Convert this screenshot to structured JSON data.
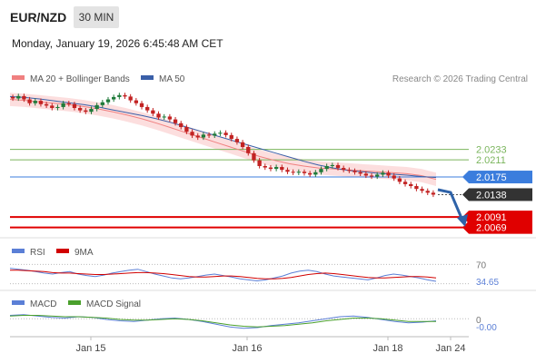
{
  "header": {
    "symbol": "EUR/NZD",
    "timeframe": "30 MIN",
    "datetime": "Monday, January 19, 2026 6:45:48 AM CET"
  },
  "legend": {
    "ma20": "MA 20 + Bollinger Bands",
    "ma50": "MA 50",
    "credit": "Research © 2026 Trading Central",
    "rsi": "RSI",
    "rsi_ma": "9MA",
    "macd": "MACD",
    "macd_signal": "MACD Signal"
  },
  "colors": {
    "up_candle": "#1f7a3a",
    "down_candle": "#c22222",
    "ma20": "#f08080",
    "ma50": "#3a5fa8",
    "bollinger_fill": "#fbd3d3",
    "green_level": "#7ab55c",
    "blue_level": "#3b7ddd",
    "red_level": "#e00000",
    "dark_level": "#333333",
    "rsi_line": "#5b7fd6",
    "rsi_ma_line": "#d10000",
    "macd_line": "#5b7fd6",
    "macd_signal_line": "#4aa02c"
  },
  "chart_data": [
    {
      "type": "candlestick",
      "title": "",
      "x_ticks": [
        "Jan 15",
        "Jan 16",
        "Jan 18",
        "Jan 24"
      ],
      "ylim": [
        2.0055,
        2.036
      ],
      "close_series": [
        2.034,
        2.0345,
        2.0338,
        2.033,
        2.0335,
        2.0328,
        2.0325,
        2.032,
        2.0322,
        2.033,
        2.0328,
        2.032,
        2.0315,
        2.0312,
        2.0318,
        2.0326,
        2.0332,
        2.0338,
        2.0343,
        2.0347,
        2.0344,
        2.0336,
        2.033,
        2.0322,
        2.0315,
        2.0308,
        2.03,
        2.0302,
        2.0296,
        2.0288,
        2.028,
        2.027,
        2.0262,
        2.0258,
        2.0264,
        2.0262,
        2.0266,
        2.0268,
        2.0263,
        2.0255,
        2.0248,
        2.0238,
        2.0225,
        2.021,
        2.0198,
        2.0195,
        2.0192,
        2.0196,
        2.019,
        2.0186,
        2.0184,
        2.0186,
        2.0183,
        2.018,
        2.0185,
        2.0192,
        2.0198,
        2.02,
        2.0194,
        2.019,
        2.0188,
        2.0185,
        2.0182,
        2.0178,
        2.0176,
        2.018,
        2.0184,
        2.0178,
        2.0172,
        2.0165,
        2.016,
        2.0156,
        2.015,
        2.0146,
        2.0142,
        2.0138
      ],
      "series": [
        {
          "name": "MA 20 + Bollinger Bands",
          "values": [
            2.0338,
            2.0336,
            2.0333,
            2.033,
            2.0327,
            2.0323,
            2.0318,
            2.0312,
            2.0305,
            2.0297,
            2.0288,
            2.0278,
            2.0268,
            2.0258,
            2.0248,
            2.0238,
            2.0228,
            2.0218,
            2.021,
            2.0203,
            2.0198,
            2.0194,
            2.0192,
            2.019,
            2.0188,
            2.0186,
            2.0184,
            2.0182,
            2.0178,
            2.017
          ]
        },
        {
          "name": "MA 50",
          "values": [
            2.0344,
            2.0342,
            2.0339,
            2.0335,
            2.0331,
            2.0327,
            2.0322,
            2.0316,
            2.031,
            2.0304,
            2.0297,
            2.0289,
            2.028,
            2.0271,
            2.0262,
            2.0253,
            2.0244,
            2.0235,
            2.0226,
            2.0217,
            2.0208,
            2.02,
            2.0194,
            2.0189,
            2.0186,
            2.0183,
            2.0181,
            2.0179,
            2.0176,
            2.0174
          ]
        }
      ],
      "levels": [
        {
          "label": "2.0233",
          "value": 2.0233,
          "style": "green"
        },
        {
          "label": "2.0211",
          "value": 2.0211,
          "style": "green"
        },
        {
          "label": "2.0175",
          "value": 2.0175,
          "style": "blue"
        },
        {
          "label": "2.0138",
          "value": 2.0138,
          "style": "dark"
        },
        {
          "label": "2.0091",
          "value": 2.0091,
          "style": "red"
        },
        {
          "label": "2.0069",
          "value": 2.0069,
          "style": "red"
        }
      ]
    },
    {
      "type": "line",
      "title": "RSI",
      "ylim": [
        20,
        80
      ],
      "y_ticks": [
        "70",
        "34.65"
      ],
      "series": [
        {
          "name": "RSI",
          "values": [
            62,
            60,
            58,
            55,
            52,
            50,
            53,
            55,
            50,
            47,
            45,
            48,
            52,
            55,
            58,
            60,
            55,
            50,
            46,
            42,
            40,
            42,
            45,
            48,
            50,
            47,
            44,
            40,
            38,
            36,
            38,
            42,
            46,
            52,
            56,
            58,
            55,
            50,
            46,
            44,
            42,
            40,
            38,
            42,
            47,
            50,
            48,
            45,
            42,
            38,
            35
          ]
        },
        {
          "name": "9MA",
          "values": [
            58,
            58,
            57,
            56,
            55,
            53,
            52,
            52,
            51,
            50,
            49,
            49,
            50,
            51,
            52,
            53,
            53,
            52,
            51,
            49,
            47,
            45,
            44,
            44,
            45,
            46,
            46,
            45,
            43,
            41,
            40,
            40,
            41,
            43,
            46,
            49,
            51,
            52,
            51,
            49,
            47,
            45,
            43,
            42,
            42,
            43,
            44,
            45,
            45,
            44,
            42
          ]
        }
      ]
    },
    {
      "type": "line",
      "title": "MACD",
      "ylim": [
        -0.0025,
        0.0015
      ],
      "y_ticks": [
        "0",
        "-0.00"
      ],
      "series": [
        {
          "name": "MACD",
          "values": [
            0.0005,
            0.0006,
            0.0004,
            0.0002,
            0.0001,
            0.0003,
            0.0002,
            -0.0001,
            -0.0003,
            -0.0004,
            -0.0002,
            0.0,
            0.0001,
            -0.0001,
            -0.0004,
            -0.0008,
            -0.0012,
            -0.0014,
            -0.0013,
            -0.001,
            -0.0008,
            -0.0006,
            -0.0003,
            0.0,
            0.0003,
            0.0004,
            0.0002,
            -0.0001,
            -0.0004,
            -0.0006,
            -0.0005,
            -0.0003
          ]
        },
        {
          "name": "MACD Signal",
          "values": [
            0.0004,
            0.0005,
            0.0005,
            0.0004,
            0.0003,
            0.0003,
            0.0002,
            0.0001,
            -0.0001,
            -0.0002,
            -0.0002,
            -0.0001,
            0.0,
            -0.0001,
            -0.0003,
            -0.0006,
            -0.0009,
            -0.0011,
            -0.0012,
            -0.0011,
            -0.001,
            -0.0008,
            -0.0006,
            -0.0003,
            -0.0001,
            0.0001,
            0.0001,
            0.0,
            -0.0002,
            -0.0004,
            -0.0004,
            -0.0004
          ]
        }
      ]
    }
  ]
}
